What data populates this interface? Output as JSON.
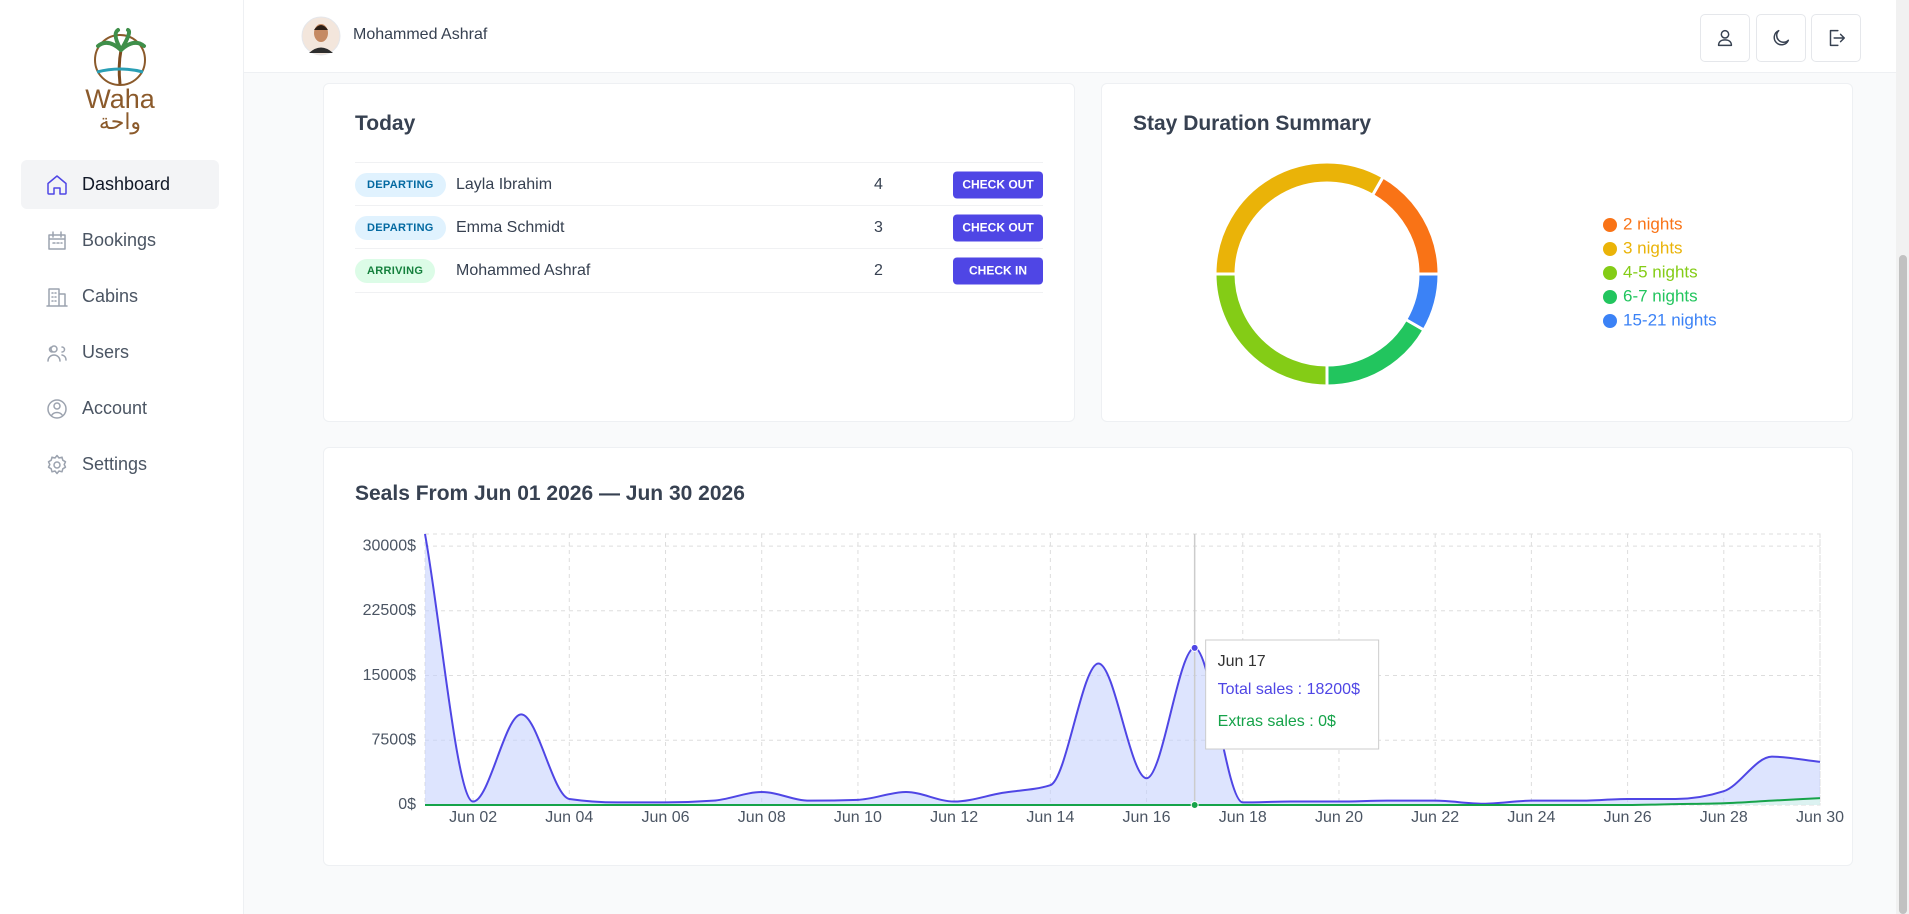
{
  "sidebar": {
    "brand": "Waha",
    "brand_arabic": "واحة",
    "nav": [
      "Dashboard",
      "Bookings",
      "Cabins",
      "Users",
      "Account",
      "Settings"
    ]
  },
  "header": {
    "user": "Mohammed Ashraf"
  },
  "today": {
    "title": "Today",
    "rows": [
      {
        "status": "DEPARTING",
        "status_color": "#0369a1",
        "status_bg": "#e0f2fe",
        "guest": "Layla Ibrahim",
        "nights": 4,
        "action": "CHECK OUT"
      },
      {
        "status": "DEPARTING",
        "status_color": "#0369a1",
        "status_bg": "#e0f2fe",
        "guest": "Emma Schmidt",
        "nights": 3,
        "action": "CHECK OUT"
      },
      {
        "status": "ARRIVING",
        "status_color": "#15803d",
        "status_bg": "#dcfce7",
        "guest": "Mohammed Ashraf",
        "nights": 2,
        "action": "CHECK IN"
      }
    ]
  },
  "stay_chart": {
    "type": "donut",
    "title": "Stay Duration Summary",
    "categories": [
      "2 nights",
      "3 nights",
      "4-5 nights",
      "6-7 nights",
      "15-21 nights"
    ],
    "values": [
      2,
      4,
      3,
      2,
      1
    ],
    "colors": [
      "#f97316",
      "#eab308",
      "#84cc16",
      "#22c55e",
      "#3b82f6"
    ]
  },
  "sales_chart": {
    "type": "area",
    "title": "Seals From Jun 01 2026 — Jun 30 2026",
    "x": [
      null,
      "Jun 02",
      null,
      "Jun 04",
      null,
      "Jun 06",
      null,
      "Jun 08",
      null,
      "Jun 10",
      null,
      "Jun 12",
      null,
      "Jun 14",
      null,
      "Jun 16",
      null,
      "Jun 18",
      null,
      "Jun 20",
      null,
      "Jun 22",
      null,
      "Jun 24",
      null,
      "Jun 26",
      null,
      "Jun 28",
      null,
      "Jun 30"
    ],
    "series": [
      {
        "name": "Total sales",
        "color": "#4f46e5",
        "fill": "#c7d2fe",
        "values": [
          31400,
          400,
          10500,
          700,
          300,
          300,
          500,
          1500,
          500,
          600,
          1500,
          400,
          1400,
          2300,
          16400,
          3100,
          18200,
          300,
          400,
          400,
          500,
          500,
          150,
          500,
          500,
          700,
          700,
          1600,
          5600,
          5000
        ]
      },
      {
        "name": "Extras sales",
        "color": "#16a34a",
        "fill": "#dcfce7",
        "values": [
          0,
          0,
          0,
          0,
          0,
          0,
          0,
          0,
          0,
          0,
          0,
          0,
          0,
          0,
          0,
          0,
          0,
          0,
          0,
          0,
          0,
          0,
          0,
          0,
          0,
          0,
          100,
          200,
          500,
          800
        ]
      }
    ],
    "ylim": [
      0,
      31400
    ],
    "yticks": [
      {
        "value": 0,
        "label": "0$"
      },
      {
        "value": 7500,
        "label": "7500$"
      },
      {
        "value": 15000,
        "label": "15000$"
      },
      {
        "value": 22500,
        "label": "22500$"
      },
      {
        "value": 30000,
        "label": "30000$"
      }
    ],
    "grid": true,
    "tooltip": {
      "label": "Jun 17",
      "lines": [
        "Total sales : 18200$",
        "Extras sales : 0$"
      ]
    }
  }
}
